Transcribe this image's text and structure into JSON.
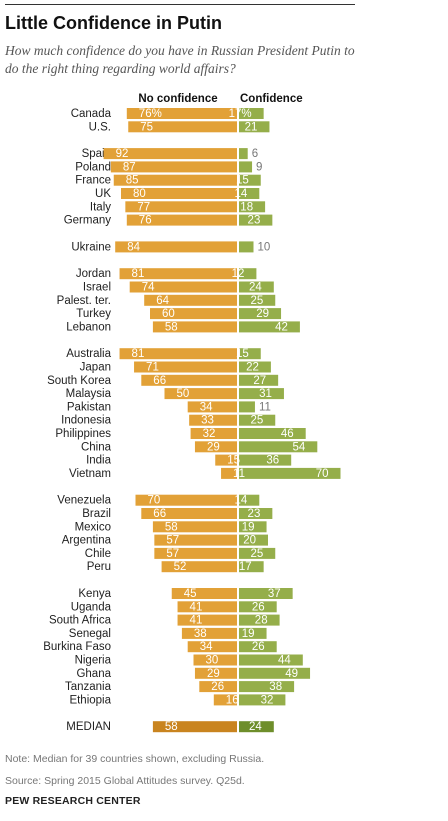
{
  "title": "Little Confidence in Putin",
  "subtitle": "How much confidence do you have in Russian President Putin to do the right thing regarding world affairs?",
  "note": "Note: Median for 39 countries shown, excluding Russia.",
  "source": "Source: Spring 2015 Global Attitudes survey. Q25d.",
  "brand": "PEW RESEARCH CENTER",
  "colors": {
    "no_confidence": "#E2A137",
    "confidence": "#95AE4A",
    "median_no": "#C9841F",
    "median_yes": "#6E8E2B"
  },
  "chart_data": {
    "type": "bar",
    "orientation": "diverging-horizontal",
    "series": [
      {
        "name": "No confidence"
      },
      {
        "name": "Confidence"
      }
    ],
    "groups": [
      {
        "rows": [
          {
            "country": "Canada",
            "no": 76,
            "yes": 17,
            "no_label": "76%",
            "yes_label": "17%"
          },
          {
            "country": "U.S.",
            "no": 75,
            "yes": 21
          }
        ]
      },
      {
        "rows": [
          {
            "country": "Spain",
            "no": 92,
            "yes": 6
          },
          {
            "country": "Poland",
            "no": 87,
            "yes": 9
          },
          {
            "country": "France",
            "no": 85,
            "yes": 15
          },
          {
            "country": "UK",
            "no": 80,
            "yes": 14
          },
          {
            "country": "Italy",
            "no": 77,
            "yes": 18
          },
          {
            "country": "Germany",
            "no": 76,
            "yes": 23
          }
        ]
      },
      {
        "rows": [
          {
            "country": "Ukraine",
            "no": 84,
            "yes": 10
          }
        ]
      },
      {
        "rows": [
          {
            "country": "Jordan",
            "no": 81,
            "yes": 12
          },
          {
            "country": "Israel",
            "no": 74,
            "yes": 24
          },
          {
            "country": "Palest. ter.",
            "no": 64,
            "yes": 25
          },
          {
            "country": "Turkey",
            "no": 60,
            "yes": 29
          },
          {
            "country": "Lebanon",
            "no": 58,
            "yes": 42
          }
        ]
      },
      {
        "rows": [
          {
            "country": "Australia",
            "no": 81,
            "yes": 15
          },
          {
            "country": "Japan",
            "no": 71,
            "yes": 22
          },
          {
            "country": "South Korea",
            "no": 66,
            "yes": 27
          },
          {
            "country": "Malaysia",
            "no": 50,
            "yes": 31
          },
          {
            "country": "Pakistan",
            "no": 34,
            "yes": 11
          },
          {
            "country": "Indonesia",
            "no": 33,
            "yes": 25
          },
          {
            "country": "Philippines",
            "no": 32,
            "yes": 46
          },
          {
            "country": "China",
            "no": 29,
            "yes": 54
          },
          {
            "country": "India",
            "no": 15,
            "yes": 36
          },
          {
            "country": "Vietnam",
            "no": 11,
            "yes": 70
          }
        ]
      },
      {
        "rows": [
          {
            "country": "Venezuela",
            "no": 70,
            "yes": 14
          },
          {
            "country": "Brazil",
            "no": 66,
            "yes": 23
          },
          {
            "country": "Mexico",
            "no": 58,
            "yes": 19
          },
          {
            "country": "Argentina",
            "no": 57,
            "yes": 20
          },
          {
            "country": "Chile",
            "no": 57,
            "yes": 25
          },
          {
            "country": "Peru",
            "no": 52,
            "yes": 17
          }
        ]
      },
      {
        "rows": [
          {
            "country": "Kenya",
            "no": 45,
            "yes": 37
          },
          {
            "country": "Uganda",
            "no": 41,
            "yes": 26
          },
          {
            "country": "South Africa",
            "no": 41,
            "yes": 28
          },
          {
            "country": "Senegal",
            "no": 38,
            "yes": 19
          },
          {
            "country": "Burkina Faso",
            "no": 34,
            "yes": 26
          },
          {
            "country": "Nigeria",
            "no": 30,
            "yes": 44
          },
          {
            "country": "Ghana",
            "no": 29,
            "yes": 49
          },
          {
            "country": "Tanzania",
            "no": 26,
            "yes": 38
          },
          {
            "country": "Ethiopia",
            "no": 16,
            "yes": 32
          }
        ]
      }
    ],
    "median": {
      "label": "MEDIAN",
      "no": 58,
      "yes": 24
    }
  }
}
